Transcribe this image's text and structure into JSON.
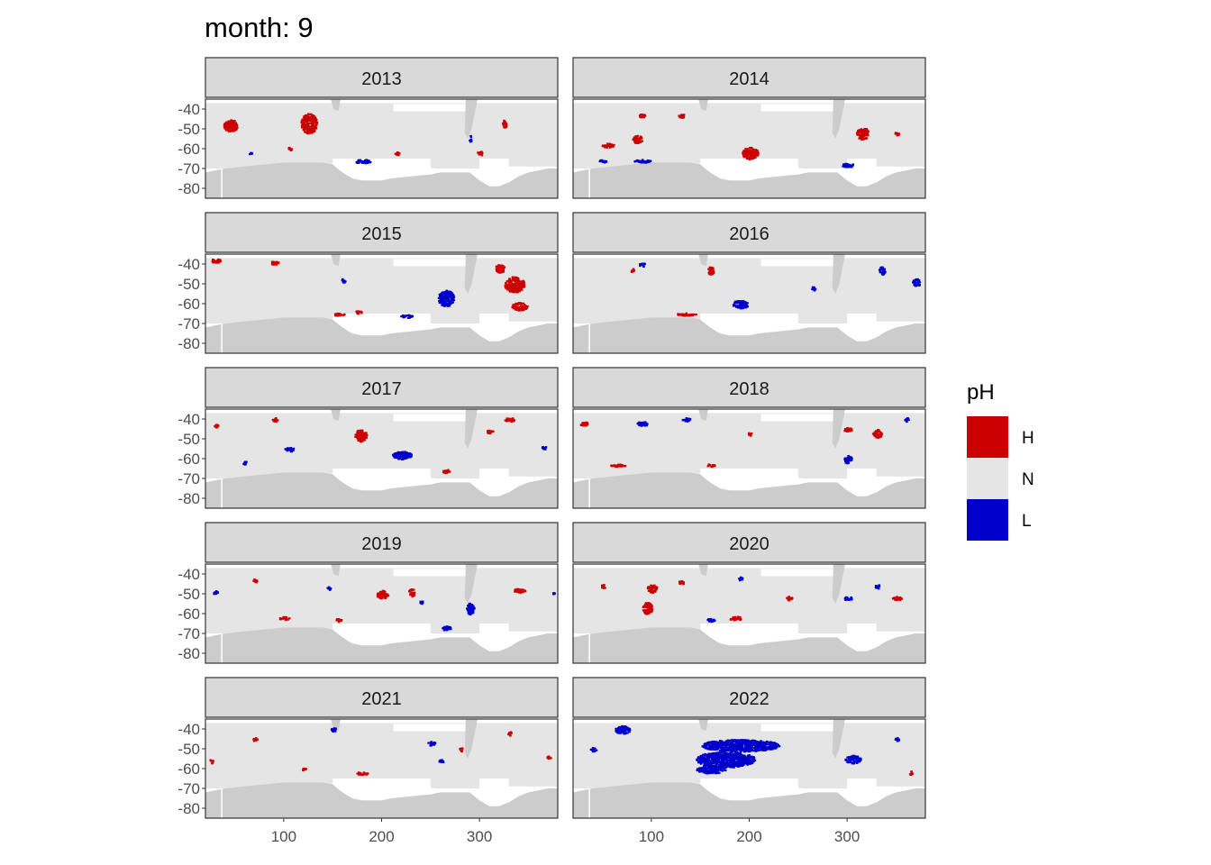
{
  "chart_data": {
    "type": "heatmap",
    "title": "month: 9",
    "facet_variable": "year",
    "x_ticks": [
      100,
      200,
      300
    ],
    "y_ticks": [
      -40,
      -50,
      -60,
      -70,
      -80
    ],
    "x_range": [
      20,
      380
    ],
    "y_range": [
      -85,
      -35
    ],
    "legend": {
      "title": "pH",
      "position": "right",
      "entries": [
        {
          "label": "H",
          "color": "#cc0000"
        },
        {
          "label": "N",
          "color": "#e5e5e5"
        },
        {
          "label": "L",
          "color": "#0000cc"
        }
      ]
    },
    "colors": {
      "land": "#cccccc",
      "ocean_normal": "#e5e5e5",
      "no_data": "#ffffff",
      "strip_bg": "#d9d9d9",
      "high": "#cc0000",
      "low": "#0000cc"
    },
    "panels": [
      {
        "year": "2013",
        "H": [
          [
            45,
            -48,
            7,
            3
          ],
          [
            125,
            -47,
            8,
            5
          ],
          [
            105,
            -60,
            2,
            1
          ],
          [
            215,
            -62,
            2,
            1
          ],
          [
            300,
            -62,
            3,
            1
          ],
          [
            325,
            -47,
            2,
            2
          ]
        ],
        "L": [
          [
            180,
            -66,
            8,
            1
          ],
          [
            65,
            -62,
            2,
            0.6
          ],
          [
            290,
            -55,
            1,
            2
          ]
        ]
      },
      {
        "year": "2014",
        "H": [
          [
            55,
            -58,
            6,
            1
          ],
          [
            85,
            -55,
            5,
            2
          ],
          [
            200,
            -62,
            8,
            3
          ],
          [
            315,
            -52,
            6,
            3
          ],
          [
            90,
            -43,
            3,
            1
          ],
          [
            130,
            -43,
            3,
            1
          ],
          [
            350,
            -52,
            2,
            1
          ]
        ],
        "L": [
          [
            90,
            -66,
            10,
            0.8
          ],
          [
            50,
            -66,
            4,
            0.8
          ],
          [
            300,
            -68,
            6,
            1
          ]
        ]
      },
      {
        "year": "2015",
        "H": [
          [
            30,
            -38,
            6,
            1
          ],
          [
            90,
            -39,
            4,
            1
          ],
          [
            335,
            -50,
            10,
            4
          ],
          [
            340,
            -61,
            8,
            2
          ],
          [
            155,
            -65,
            6,
            0.7
          ],
          [
            175,
            -64,
            4,
            0.7
          ],
          [
            320,
            -42,
            5,
            2
          ]
        ],
        "L": [
          [
            265,
            -57,
            8,
            4
          ],
          [
            225,
            -66,
            6,
            0.8
          ],
          [
            160,
            -48,
            2,
            1
          ]
        ]
      },
      {
        "year": "2016",
        "H": [
          [
            135,
            -65,
            10,
            0.7
          ],
          [
            160,
            -43,
            3,
            2
          ],
          [
            80,
            -43,
            2,
            1
          ]
        ],
        "L": [
          [
            190,
            -60,
            8,
            2
          ],
          [
            335,
            -43,
            3,
            2
          ],
          [
            370,
            -49,
            4,
            2
          ],
          [
            265,
            -52,
            2,
            1
          ],
          [
            90,
            -40,
            3,
            1
          ]
        ],
        "N": []
      },
      {
        "year": "2017",
        "H": [
          [
            178,
            -48,
            6,
            3
          ],
          [
            330,
            -40,
            5,
            1
          ],
          [
            265,
            -66,
            4,
            1
          ],
          [
            90,
            -40,
            3,
            1
          ],
          [
            30,
            -43,
            2,
            1
          ],
          [
            310,
            -46,
            3,
            1
          ]
        ],
        "L": [
          [
            220,
            -58,
            10,
            2
          ],
          [
            105,
            -55,
            5,
            1
          ],
          [
            60,
            -62,
            2,
            1
          ],
          [
            365,
            -54,
            2,
            1
          ]
        ],
        "N": []
      },
      {
        "year": "2018",
        "H": [
          [
            30,
            -42,
            4,
            1
          ],
          [
            65,
            -63,
            8,
            0.7
          ],
          [
            160,
            -63,
            4,
            0.7
          ],
          [
            300,
            -45,
            4,
            1
          ],
          [
            330,
            -47,
            5,
            2
          ],
          [
            200,
            -47,
            2,
            1
          ]
        ],
        "L": [
          [
            90,
            -42,
            6,
            1
          ],
          [
            135,
            -40,
            4,
            1
          ],
          [
            300,
            -60,
            4,
            2
          ],
          [
            360,
            -40,
            2,
            1
          ]
        ],
        "N": []
      },
      {
        "year": "2019",
        "H": [
          [
            200,
            -50,
            6,
            2
          ],
          [
            340,
            -48,
            6,
            1
          ],
          [
            100,
            -62,
            5,
            0.8
          ],
          [
            155,
            -63,
            3,
            0.8
          ],
          [
            70,
            -43,
            2,
            1
          ],
          [
            230,
            -49,
            3,
            2
          ]
        ],
        "L": [
          [
            30,
            -49,
            3,
            1
          ],
          [
            290,
            -57,
            4,
            3
          ],
          [
            265,
            -67,
            5,
            1
          ],
          [
            145,
            -47,
            2,
            1
          ],
          [
            240,
            -54,
            2,
            1
          ],
          [
            375,
            -50,
            1,
            1
          ]
        ],
        "N": []
      },
      {
        "year": "2020",
        "H": [
          [
            100,
            -47,
            5,
            2
          ],
          [
            95,
            -57,
            5,
            3
          ],
          [
            185,
            -62,
            6,
            1
          ],
          [
            350,
            -52,
            5,
            1
          ],
          [
            240,
            -52,
            3,
            1
          ],
          [
            50,
            -46,
            2,
            1
          ],
          [
            130,
            -44,
            3,
            1
          ]
        ],
        "L": [
          [
            300,
            -52,
            4,
            1
          ],
          [
            330,
            -46,
            3,
            1
          ],
          [
            190,
            -42,
            2,
            1
          ],
          [
            160,
            -63,
            4,
            1
          ]
        ],
        "N": []
      },
      {
        "year": "2021",
        "H": [
          [
            180,
            -62,
            6,
            0.8
          ],
          [
            370,
            -54,
            2,
            1
          ],
          [
            25,
            -56,
            2,
            1
          ],
          [
            280,
            -50,
            2,
            1
          ],
          [
            330,
            -42,
            2,
            1
          ],
          [
            70,
            -45,
            2,
            1
          ],
          [
            120,
            -60,
            2,
            0.7
          ]
        ],
        "L": [
          [
            250,
            -47,
            4,
            1
          ],
          [
            150,
            -40,
            3,
            1
          ],
          [
            260,
            -56,
            2,
            1
          ]
        ],
        "N": []
      },
      {
        "year": "2022",
        "H": [
          [
            365,
            -62,
            2,
            1
          ]
        ],
        "L": [
          [
            190,
            -48,
            40,
            3
          ],
          [
            175,
            -55,
            30,
            4
          ],
          [
            70,
            -40,
            8,
            2
          ],
          [
            160,
            -60,
            15,
            2
          ],
          [
            305,
            -55,
            8,
            2
          ],
          [
            350,
            -45,
            2,
            1
          ],
          [
            40,
            -50,
            3,
            1
          ]
        ],
        "N": []
      }
    ]
  }
}
